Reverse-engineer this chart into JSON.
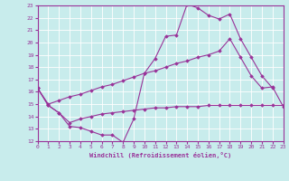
{
  "xlabel": "Windchill (Refroidissement éolien,°C)",
  "bg_color": "#c8ecec",
  "line_color": "#993399",
  "grid_color": "#ffffff",
  "xmin": 0,
  "xmax": 23,
  "ymin": 12,
  "ymax": 23,
  "line1_x": [
    0,
    1,
    2,
    3,
    4,
    5,
    6,
    7,
    8,
    9,
    10,
    11,
    12,
    13,
    14,
    15,
    16,
    17,
    18,
    19,
    20,
    21,
    22
  ],
  "line1_y": [
    16.3,
    14.9,
    14.3,
    13.2,
    13.1,
    12.8,
    12.5,
    12.5,
    11.9,
    13.8,
    17.5,
    18.7,
    20.5,
    20.6,
    23.1,
    22.8,
    22.2,
    21.9,
    22.3,
    20.3,
    18.8,
    17.3,
    16.3
  ],
  "line2_x": [
    0,
    1,
    2,
    3,
    4,
    5,
    6,
    7,
    8,
    9,
    10,
    11,
    12,
    13,
    14,
    15,
    16,
    17,
    18,
    19,
    20,
    21,
    22,
    23
  ],
  "line2_y": [
    16.3,
    14.9,
    14.3,
    13.5,
    13.8,
    14.0,
    14.2,
    14.3,
    14.4,
    14.5,
    14.6,
    14.7,
    14.7,
    14.8,
    14.8,
    14.8,
    14.9,
    14.9,
    14.9,
    14.9,
    14.9,
    14.9,
    14.9,
    14.9
  ],
  "line3_x": [
    0,
    1,
    2,
    3,
    4,
    5,
    6,
    7,
    8,
    9,
    10,
    11,
    12,
    13,
    14,
    15,
    16,
    17,
    18,
    19,
    20,
    21,
    22,
    23
  ],
  "line3_y": [
    16.3,
    15.0,
    15.3,
    15.6,
    15.8,
    16.1,
    16.4,
    16.6,
    16.9,
    17.2,
    17.5,
    17.7,
    18.0,
    18.3,
    18.5,
    18.8,
    19.0,
    19.3,
    20.3,
    18.8,
    17.3,
    16.3,
    16.4,
    14.8
  ]
}
